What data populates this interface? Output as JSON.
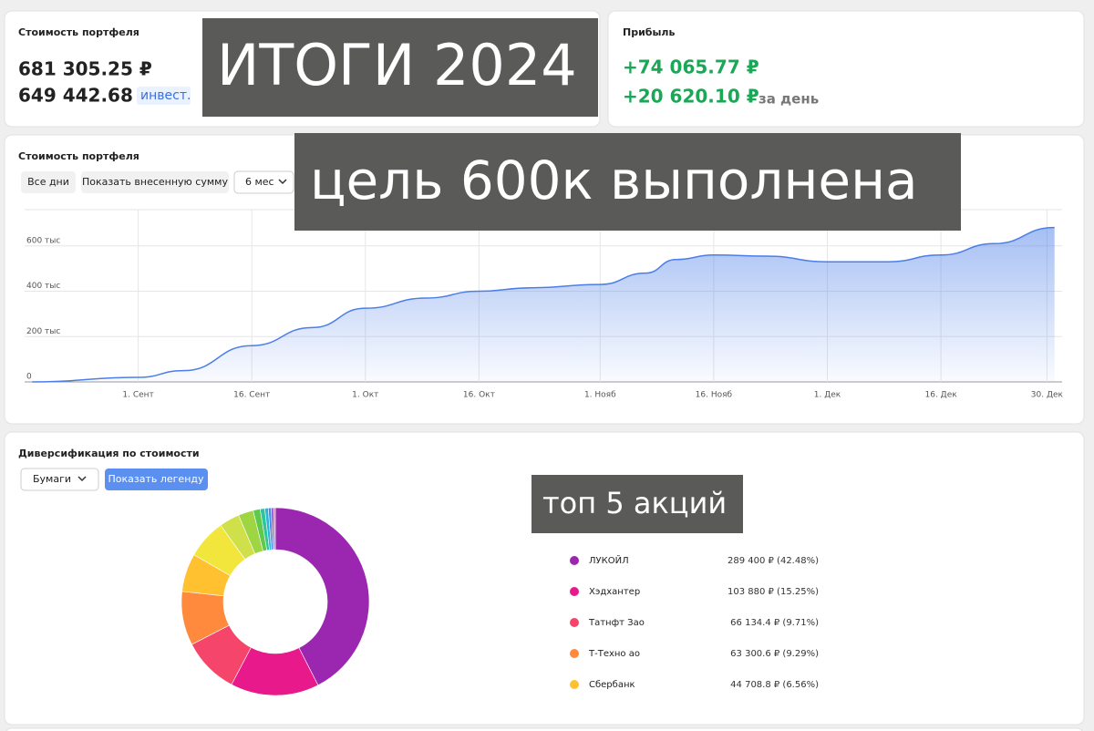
{
  "portfolio": {
    "title": "Стоимость портфеля",
    "value": "681 305.25 ₽",
    "invested": "649 442.68 ₽",
    "invested_tag": "инвест."
  },
  "profit": {
    "title": "Прибыль",
    "total": "+74 065.77 ₽",
    "day": "+20 620.10 ₽",
    "day_label": "за день"
  },
  "overlays": [
    "ИТОГИ 2024",
    "цель 600к выполнена",
    "топ 5 акций"
  ],
  "controls": {
    "history": [
      "Все дни",
      "Показать внесенную сумму",
      "6 мес"
    ],
    "diversification": [
      "Бумаги",
      "Показать легенду"
    ]
  },
  "chart_data": [
    {
      "type": "area",
      "title": "Стоимость портфеля",
      "color": "#4c7ee8",
      "grid": true,
      "x": [
        231,
        245,
        251,
        260,
        268,
        275,
        283,
        290,
        297,
        306,
        312,
        316,
        321,
        328,
        336,
        344,
        351,
        358,
        366
      ],
      "values": [
        0,
        20000,
        50000,
        160000,
        240000,
        325000,
        370000,
        400000,
        415000,
        430000,
        480000,
        540000,
        560000,
        555000,
        530000,
        530000,
        560000,
        610000,
        681305
      ],
      "xlim": [
        230,
        367
      ],
      "xticks": [
        {
          "value": 245,
          "label": "1. Сент"
        },
        {
          "value": 260,
          "label": "16. Сент"
        },
        {
          "value": 275,
          "label": "1. Окт"
        },
        {
          "value": 290,
          "label": "16. Окт"
        },
        {
          "value": 306,
          "label": "1. Нояб"
        },
        {
          "value": 321,
          "label": "16. Нояб"
        },
        {
          "value": 336,
          "label": "1. Дек"
        },
        {
          "value": 351,
          "label": "16. Дек"
        },
        {
          "value": 365,
          "label": "30. Дек"
        }
      ],
      "ylim": [
        0,
        760000
      ],
      "yticks": [
        0,
        {
          "value": 200000,
          "label": "200 тыс"
        },
        {
          "value": 400000,
          "label": "400 тыс"
        },
        {
          "value": 600000,
          "label": "600 тыс"
        }
      ]
    },
    {
      "type": "pie",
      "title": "Диверсификация по стоимости",
      "categories": [
        "ЛУКОЙЛ",
        "Хэдхантер",
        "Татнфт Зао",
        "Т-Техно ао",
        "Сбербанк",
        null,
        null,
        null,
        null,
        null,
        null,
        null,
        null,
        null
      ],
      "values": [
        42.48,
        15.25,
        9.71,
        9.29,
        6.56,
        6.8,
        3.5,
        2.6,
        1.2,
        0.8,
        0.6,
        0.5,
        0.4,
        0.3
      ],
      "value_labels": [
        "289 400 ₽ (42.48%)",
        "103 880 ₽ (15.25%)",
        "66 134.4 ₽ (9.71%)",
        "63 300.6 ₽ (9.29%)",
        "44 708.8 ₽ (6.56%)",
        null,
        null,
        null,
        null,
        null,
        null,
        null,
        null,
        null
      ],
      "colors": [
        "#9b27b0",
        "#e8198b",
        "#f5456a",
        "#ff8a3d",
        "#ffc130",
        "#f2e53c",
        "#cfe04a",
        "#9fd443",
        "#5ec94a",
        "#2ec49c",
        "#2bb5d8",
        "#4a8be0",
        "#7a5cd6",
        "#e05cb0"
      ]
    }
  ]
}
